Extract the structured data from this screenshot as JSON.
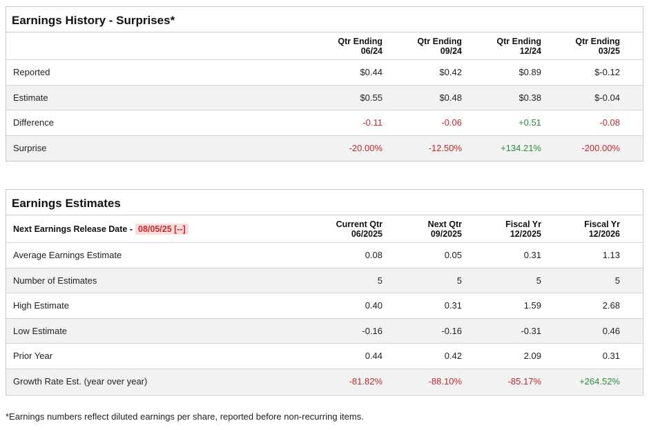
{
  "earnings_history": {
    "title": "Earnings History - Surprises*",
    "columns": [
      {
        "line1": "Qtr Ending",
        "line2": "06/24"
      },
      {
        "line1": "Qtr Ending",
        "line2": "09/24"
      },
      {
        "line1": "Qtr Ending",
        "line2": "12/24"
      },
      {
        "line1": "Qtr Ending",
        "line2": "03/25"
      }
    ],
    "rows": [
      {
        "label": "Reported",
        "values": [
          "$0.44",
          "$0.42",
          "$0.89",
          "$-0.12"
        ],
        "tones": [
          "n",
          "n",
          "n",
          "n"
        ]
      },
      {
        "label": "Estimate",
        "values": [
          "$0.55",
          "$0.48",
          "$0.38",
          "$-0.04"
        ],
        "tones": [
          "n",
          "n",
          "n",
          "n"
        ]
      },
      {
        "label": "Difference",
        "values": [
          "-0.11",
          "-0.06",
          "+0.51",
          "-0.08"
        ],
        "tones": [
          "neg",
          "neg",
          "pos",
          "neg"
        ]
      },
      {
        "label": "Surprise",
        "values": [
          "-20.00%",
          "-12.50%",
          "+134.21%",
          "-200.00%"
        ],
        "tones": [
          "neg",
          "neg",
          "pos",
          "neg"
        ]
      }
    ]
  },
  "earnings_estimates": {
    "title": "Earnings Estimates",
    "release_label": "Next Earnings Release Date -",
    "release_date": "08/05/25 [--]",
    "columns": [
      {
        "line1": "Current Qtr",
        "line2": "06/2025"
      },
      {
        "line1": "Next Qtr",
        "line2": "09/2025"
      },
      {
        "line1": "Fiscal Yr",
        "line2": "12/2025"
      },
      {
        "line1": "Fiscal Yr",
        "line2": "12/2026"
      }
    ],
    "rows": [
      {
        "label": "Average Earnings Estimate",
        "values": [
          "0.08",
          "0.05",
          "0.31",
          "1.13"
        ],
        "tones": [
          "n",
          "n",
          "n",
          "n"
        ]
      },
      {
        "label": "Number of Estimates",
        "values": [
          "5",
          "5",
          "5",
          "5"
        ],
        "tones": [
          "n",
          "n",
          "n",
          "n"
        ]
      },
      {
        "label": "High Estimate",
        "values": [
          "0.40",
          "0.31",
          "1.59",
          "2.68"
        ],
        "tones": [
          "n",
          "n",
          "n",
          "n"
        ]
      },
      {
        "label": "Low Estimate",
        "values": [
          "-0.16",
          "-0.16",
          "-0.31",
          "0.46"
        ],
        "tones": [
          "n",
          "n",
          "n",
          "n"
        ]
      },
      {
        "label": "Prior Year",
        "values": [
          "0.44",
          "0.42",
          "2.09",
          "0.31"
        ],
        "tones": [
          "n",
          "n",
          "n",
          "n"
        ]
      },
      {
        "label": "Growth Rate Est. (year over year)",
        "values": [
          "-81.82%",
          "-88.10%",
          "-85.17%",
          "+264.52%"
        ],
        "tones": [
          "neg",
          "neg",
          "neg",
          "pos"
        ]
      }
    ]
  },
  "footnote": "*Earnings numbers reflect diluted earnings per share, reported before non-recurring items.",
  "colors": {
    "negative": "#c0282d",
    "positive": "#2e8b3d",
    "highlight_bg": "#fbdcdc",
    "row_shade": "#f2f2f2",
    "border": "#c9c9c9"
  }
}
